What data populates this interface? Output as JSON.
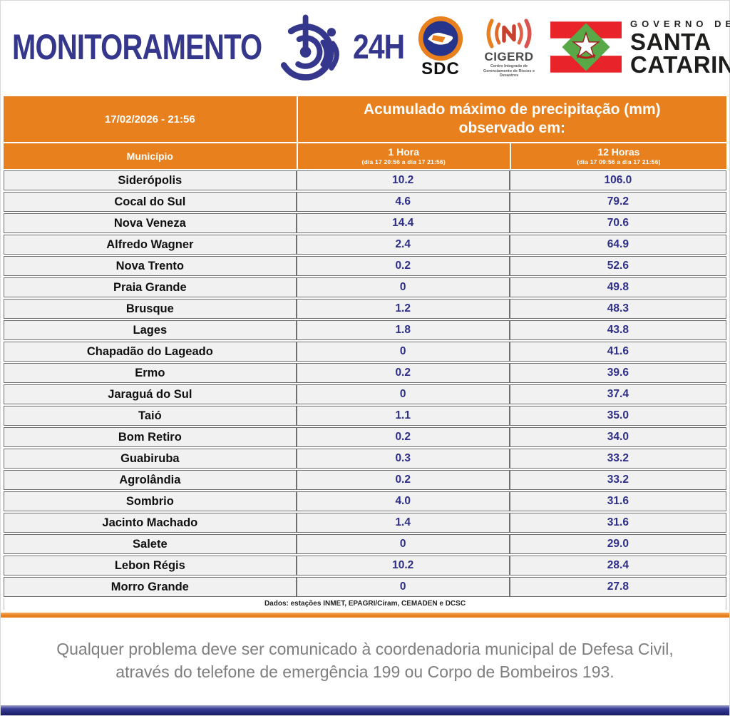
{
  "header": {
    "brand": "MONITORAMENTO",
    "brand_suffix": "24H",
    "sdc_label": "SDC",
    "cigerd_label": "CIGERD",
    "cigerd_subtitle": "Centro Integrado de Gerenciamento de Riscos e Desastres",
    "gov_line1": "GOVERNO DE",
    "gov_line2": "SANTA",
    "gov_line3": "CATARINA"
  },
  "table": {
    "timestamp": "17/02/2026 - 21:56",
    "title": "Acumulado máximo de precipitação (mm) observado em:",
    "columns": {
      "municipality": "Município",
      "hour1_label": "1 Hora",
      "hour1_range": "(dia 17 20:56 a dia 17 21:56)",
      "hour12_label": "12 Horas",
      "hour12_range": "(dia 17 09:56 a dia 17 21:56)"
    },
    "rows": [
      {
        "municipality": "Siderópolis",
        "h1": "10.2",
        "h12": "106.0"
      },
      {
        "municipality": "Cocal do Sul",
        "h1": "4.6",
        "h12": "79.2"
      },
      {
        "municipality": "Nova Veneza",
        "h1": "14.4",
        "h12": "70.6"
      },
      {
        "municipality": "Alfredo Wagner",
        "h1": "2.4",
        "h12": "64.9"
      },
      {
        "municipality": "Nova Trento",
        "h1": "0.2",
        "h12": "52.6"
      },
      {
        "municipality": "Praia Grande",
        "h1": "0",
        "h12": "49.8"
      },
      {
        "municipality": "Brusque",
        "h1": "1.2",
        "h12": "48.3"
      },
      {
        "municipality": "Lages",
        "h1": "1.8",
        "h12": "43.8"
      },
      {
        "municipality": "Chapadão do Lageado",
        "h1": "0",
        "h12": "41.6"
      },
      {
        "municipality": "Ermo",
        "h1": "0.2",
        "h12": "39.6"
      },
      {
        "municipality": "Jaraguá do Sul",
        "h1": "0",
        "h12": "37.4"
      },
      {
        "municipality": "Taió",
        "h1": "1.1",
        "h12": "35.0"
      },
      {
        "municipality": "Bom Retiro",
        "h1": "0.2",
        "h12": "34.0"
      },
      {
        "municipality": "Guabiruba",
        "h1": "0.3",
        "h12": "33.2"
      },
      {
        "municipality": "Agrolândia",
        "h1": "0.2",
        "h12": "33.2"
      },
      {
        "municipality": "Sombrio",
        "h1": "4.0",
        "h12": "31.6"
      },
      {
        "municipality": "Jacinto Machado",
        "h1": "1.4",
        "h12": "31.6"
      },
      {
        "municipality": "Salete",
        "h1": "0",
        "h12": "29.0"
      },
      {
        "municipality": "Lebon Régis",
        "h1": "10.2",
        "h12": "28.4"
      },
      {
        "municipality": "Morro Grande",
        "h1": "0",
        "h12": "27.8"
      }
    ],
    "source_note": "Dados: estações INMET, EPAGRI/Ciram, CEMADEN e DCSC"
  },
  "footer": {
    "line1": "Qualquer problema deve ser comunicado à coordenadoria municipal de Defesa Civil,",
    "line2": "através do telefone de emergência 199 ou Corpo de Bombeiros 193."
  },
  "colors": {
    "orange": "#E8801D",
    "indigo": "#35378C",
    "value_blue": "#2D2E87",
    "flag_red": "#E8232A",
    "flag_green": "#58A847"
  }
}
